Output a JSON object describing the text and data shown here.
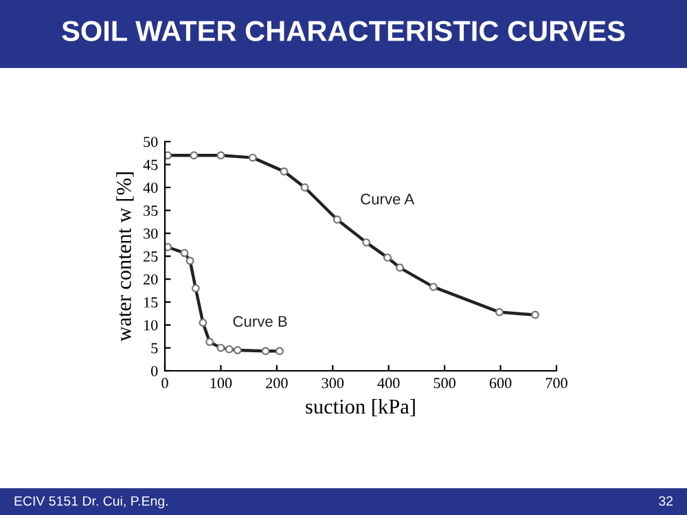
{
  "chart_data": {
    "type": "line",
    "title": "SOIL WATER CHARACTERISTIC CURVES",
    "xlabel": "suction [kPa]",
    "ylabel": "water content w [%]",
    "series": [
      {
        "name": "Curve A",
        "color": "#222222",
        "x": [
          5,
          52,
          100,
          157,
          213,
          250,
          308,
          360,
          398,
          420,
          480,
          598,
          662
        ],
        "values": [
          47,
          47,
          47,
          46.5,
          43.5,
          40,
          33,
          28,
          24.7,
          22.5,
          18.3,
          12.8,
          12.2
        ]
      },
      {
        "name": "Curve B",
        "color": "#222222",
        "x": [
          5,
          35,
          45,
          55,
          68,
          80,
          100,
          115,
          130,
          180,
          205
        ],
        "values": [
          27,
          25.7,
          24,
          18,
          10.5,
          6.3,
          5,
          4.7,
          4.5,
          4.3,
          4.3
        ]
      }
    ],
    "xlim": [
      0,
      700
    ],
    "xticks": [
      0,
      100,
      200,
      300,
      400,
      500,
      600,
      700
    ],
    "ylim": [
      0,
      50
    ],
    "yticks": [
      0,
      5,
      10,
      15,
      20,
      25,
      30,
      35,
      40,
      45,
      50
    ],
    "marker": "circle",
    "line_style": "solid",
    "grid": false,
    "legend": false,
    "annotations": [
      "ECIV 5151 Dr. Cui, P.Eng.",
      "32"
    ]
  }
}
